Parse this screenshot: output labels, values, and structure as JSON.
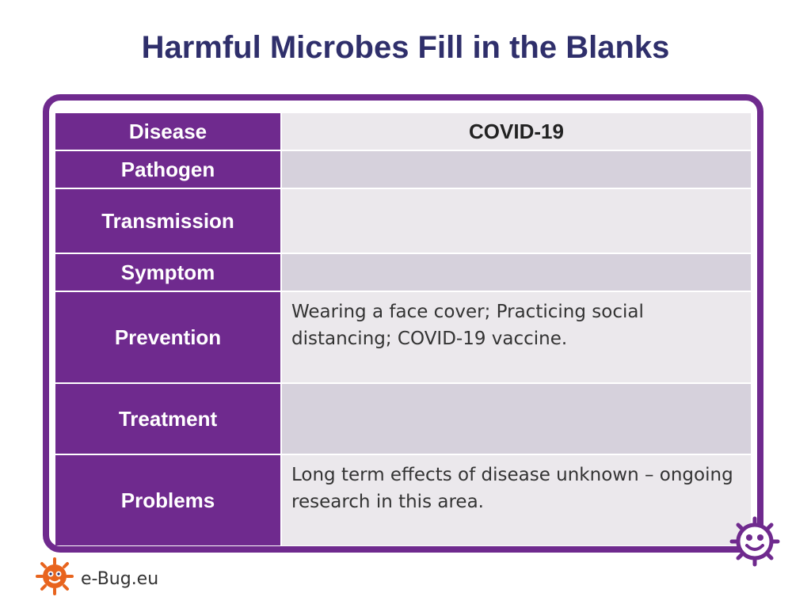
{
  "title": "Harmful Microbes Fill in the Blanks",
  "table": {
    "rows": [
      {
        "label": "Disease",
        "value": "COVID-19"
      },
      {
        "label": "Pathogen",
        "value": ""
      },
      {
        "label": "Transmission",
        "value": ""
      },
      {
        "label": "Symptom",
        "value": ""
      },
      {
        "label": "Prevention",
        "value": "Wearing a face cover; Practicing social distancing; COVID-19 vaccine."
      },
      {
        "label": "Treatment",
        "value": ""
      },
      {
        "label": "Problems",
        "value": "Long term effects of disease unknown – ongoing research in this area."
      }
    ]
  },
  "footer": {
    "brand": "e-Bug.eu",
    "logo_icon": "ebug-microbe-icon"
  },
  "colors": {
    "primary": "#6f2a8e",
    "title": "#2f2f6b",
    "cell_light": "#ebe8ec",
    "cell_dark": "#d6d1dc",
    "logo_orange": "#e8641e"
  }
}
